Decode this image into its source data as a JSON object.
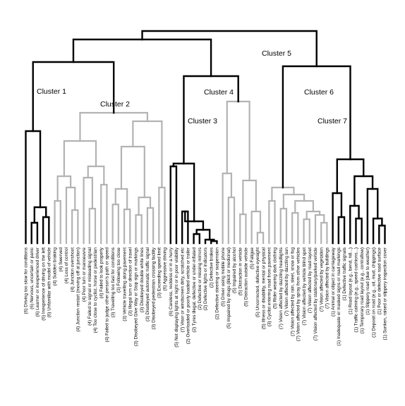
{
  "colors": {
    "black": "#000000",
    "grey": "#b3b3b3"
  },
  "clusters": [
    {
      "name": "Cluster 1",
      "color": "black"
    },
    {
      "name": "Cluster 2",
      "color": "grey"
    },
    {
      "name": "Cluster 3",
      "color": "black"
    },
    {
      "name": "Cluster 4",
      "color": "grey"
    },
    {
      "name": "Cluster 5",
      "color": "black"
    },
    {
      "name": "Cluster 6",
      "color": "grey"
    },
    {
      "name": "Cluster 7",
      "color": "black"
    }
  ],
  "leaves": [
    "(6) Driving too slow for conditions",
    "(6) Nervous, uncertain or panic",
    "(6) Learner or inexperienced driver",
    "(6) Inexperience of driving on the left",
    "(6) Unfamiliar with model of vehicle",
    "(4) Sudden braking",
    "(4) Swerved",
    "(4) Loss of control",
    "(4) Junction overshoot",
    "(4) Junction restart (moving off at junction)",
    "(4) Poor turn or manoeuvre",
    "(4) Failed to signal or misleading signal",
    "(4) Too close to cyclist, horse or pedestrian",
    "(4) Failed to look properly",
    "(4) Failed to judge other person's path or speed",
    "(3) Travelling too fast for conditions",
    "(3) Following too close",
    "(3) Vehicle travelling along pavement",
    "(3) Illegal turn or direction of travel",
    "(3) Disobeyed Give Way or Stop sign or markings",
    "(3) Disobeyed double white lines",
    "(3) Disobeyed automatic traffic signal",
    "(3) Disobeyed pedestrian crossing facility",
    "(3) Exceeding speed limit",
    "(6) Aggressive driving",
    "(6) Careless, reckless or in a hurry",
    "(5) Not displaying lights at night or in poor visibility",
    "(7) Visor or windscreen dirty, scratched etc",
    "(2) Overloaded or poorly loaded vehicle or trailer",
    "(2) Tyres illegal, defective or under-inflated",
    "(2) Defective or missing mirrors",
    "(2) Defective lights or indicators",
    "(2) Defective brakes",
    "(2) Defective steering or suspension",
    "(5) Driver using mobile phone",
    "(5) Impaired by drugs (illicit or medicinal)",
    "(5) Impaired by alcohol",
    "(5) Distraction in vehicle",
    "(5) Distraction outside vehicle",
    "(5) Fatigue",
    "(5) Uncorrected, defective eyesight",
    "(5) Illness or disability, mental or physical",
    "(3) Cyclist entering road from pavement",
    "(5) Rider wearing dark clothing",
    "(7) Vision affected by dazzling headlights",
    "(7) Vision affected by dazzling sun",
    "(7) Vision affected by rain, sleet, snow or fog",
    "(7) Vision affected by spray from other vehicles",
    "(7) Vision affected by vehicle blind spot",
    "(7) Vision affected by road layout",
    "(7) Vision affected by stationary/parked vehicle",
    "(7) Vision affected by vegetation",
    "(7) Vision affected by buildings",
    "(1) Animal or object in carriageway",
    "(1) Inadequate or masked signs or road markings",
    "(1) Defective traffic signals",
    "(1) Road layout (e.g., bend, hill...)",
    "(1) Traffic calming (e.g., speed cushions...)",
    "(1) Temporary road layout (e.g., contraflow)",
    "(1) Slippery road (due to weather)",
    "(1) Deposit on road (e.g., oil, mud, chippings)",
    "(1) Poor or defective road surface",
    "(1) Sunken, raised or slippery inspection cover"
  ]
}
